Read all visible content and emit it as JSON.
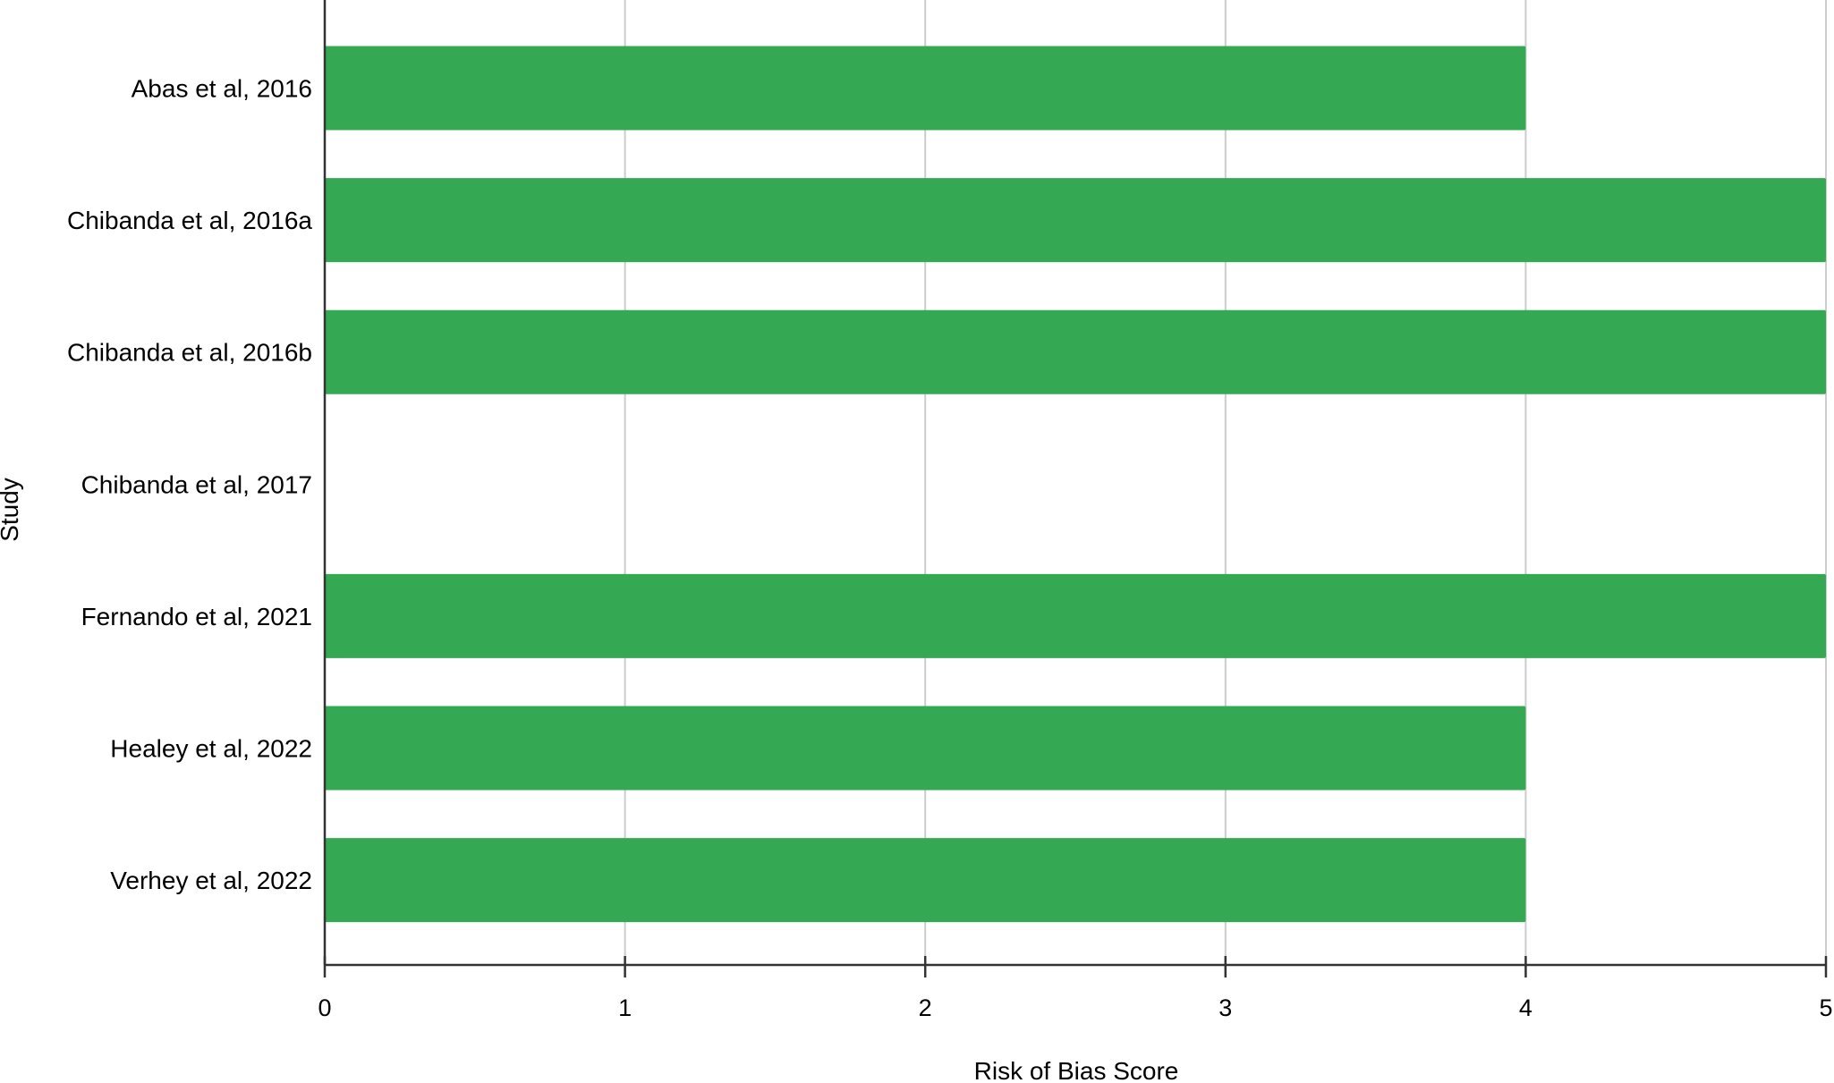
{
  "chart_data": {
    "type": "bar",
    "orientation": "horizontal",
    "categories": [
      "Abas et al, 2016",
      "Chibanda et al, 2016a",
      "Chibanda et al, 2016b",
      "Chibanda et al, 2017",
      "Fernando et al, 2021",
      "Healey et al, 2022",
      "Verhey et al, 2022"
    ],
    "values": [
      4,
      5,
      5,
      0,
      5,
      4,
      4
    ],
    "xlabel": "Risk of Bias Score",
    "ylabel": "Study",
    "xlim": [
      0,
      5
    ],
    "xticks": [
      "0",
      "1",
      "2",
      "3",
      "4",
      "5"
    ],
    "grid": "vertical",
    "legend": "none",
    "colors": {
      "bar": "#34a853",
      "grid": "#cccccc",
      "axis": "#333333"
    }
  }
}
